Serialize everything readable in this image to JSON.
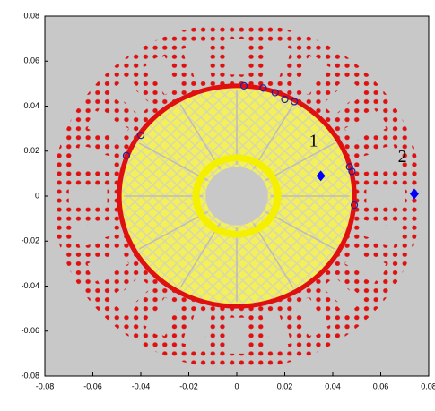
{
  "chart_data": {
    "type": "scatter",
    "xlim": [
      -0.08,
      0.08
    ],
    "ylim": [
      -0.08,
      0.08
    ],
    "xticks": [
      -0.08,
      -0.06,
      -0.04,
      -0.02,
      0,
      0.02,
      0.04,
      0.06,
      0.08
    ],
    "yticks": [
      -0.08,
      -0.06,
      -0.04,
      -0.02,
      0,
      0.02,
      0.04,
      0.06,
      0.08
    ],
    "series": [
      {
        "color": "#1f1f9f",
        "marker": "circle",
        "x": [
          0.003,
          0.011,
          0.016,
          0.02,
          0.024,
          -0.04,
          -0.046,
          0.047,
          0.048,
          0.049
        ],
        "y": [
          0.049,
          0.048,
          0.046,
          0.043,
          0.042,
          0.027,
          0.018,
          0.013,
          0.011,
          -0.004
        ]
      },
      {
        "color": "#0000ff",
        "marker": "diamond",
        "x": [
          0.035,
          0.074
        ],
        "y": [
          0.009,
          0.001
        ]
      }
    ],
    "annotations": [
      {
        "text": "1",
        "x": 0.032,
        "y": 0.024
      },
      {
        "text": "2",
        "x": 0.069,
        "y": 0.017
      }
    ]
  }
}
